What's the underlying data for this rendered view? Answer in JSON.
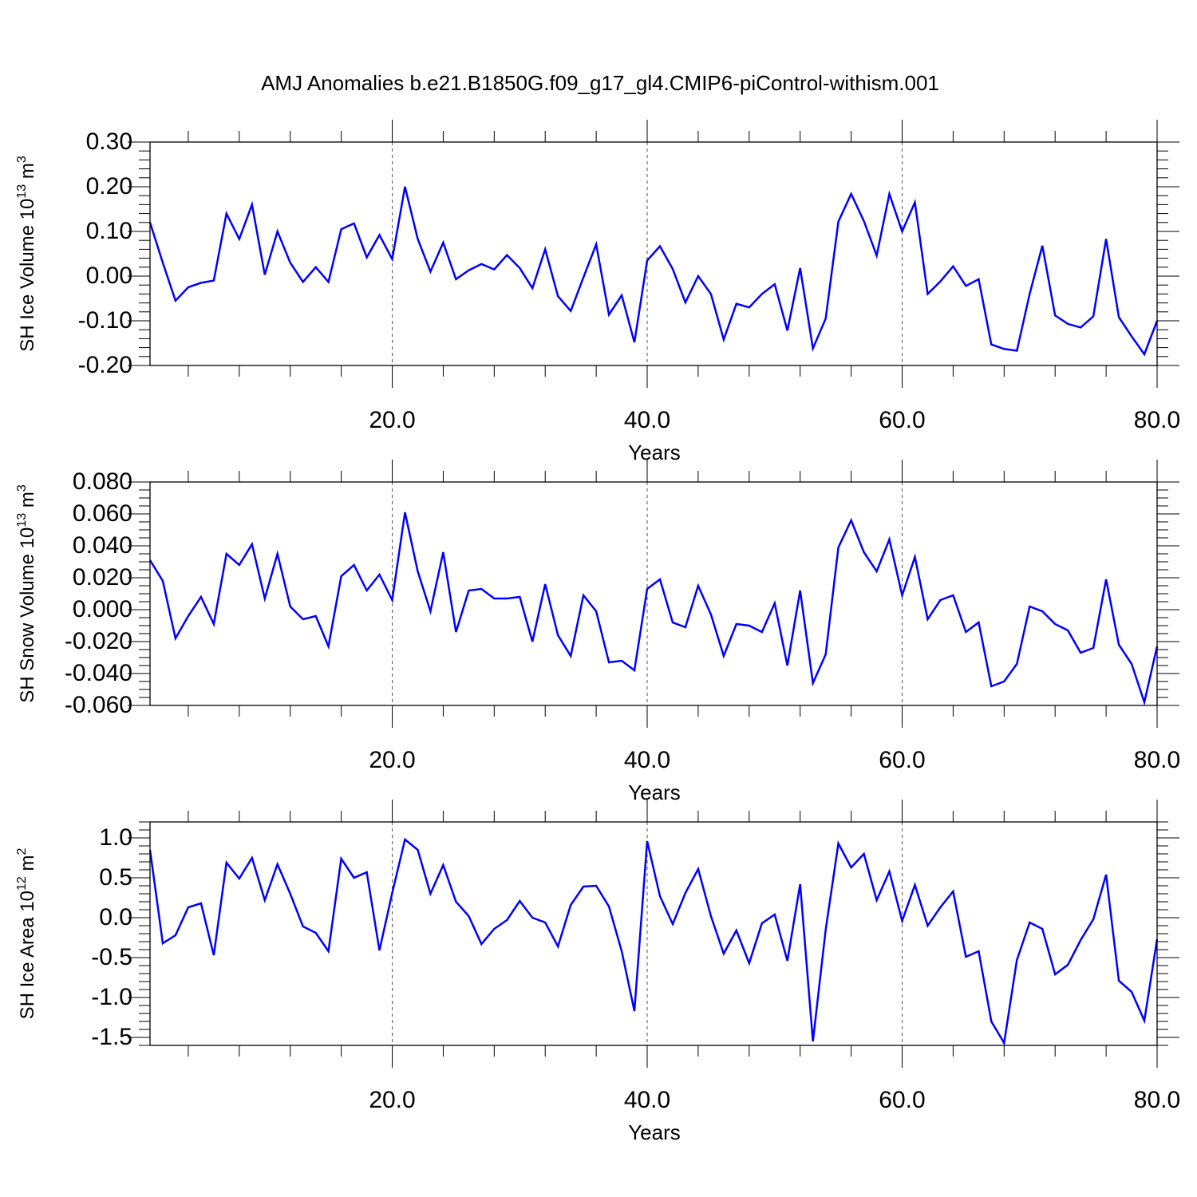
{
  "title": "AMJ Anomalies b.e21.B1850G.f09_g17_gl4.CMIP6-piControl-withism.001",
  "chart_data": [
    {
      "type": "line",
      "ylabel_main": "SH Ice Volume 10",
      "ylabel_sup": "13",
      "ylabel_unit": " m",
      "ylabel_unit_sup": "3",
      "xlabel": "Years",
      "xlim": [
        1,
        80
      ],
      "ylim": [
        -0.2,
        0.3
      ],
      "xticks": [
        20,
        40,
        60,
        80
      ],
      "xtick_labels": [
        "20.0",
        "40.0",
        "60.0",
        "80.0"
      ],
      "yticks": [
        -0.2,
        -0.1,
        0.0,
        0.1,
        0.2,
        0.3
      ],
      "ytick_labels": [
        "-0.20",
        "-0.10",
        "0.00",
        "0.10",
        "0.20",
        "0.30"
      ],
      "minor_y_step": 0.02,
      "dashed_x": [
        20,
        40,
        60
      ],
      "series": [
        {
          "color": "#0000ff",
          "x": [
            1,
            2,
            3,
            4,
            5,
            6,
            7,
            8,
            9,
            10,
            11,
            12,
            13,
            14,
            15,
            16,
            17,
            18,
            19,
            20,
            21,
            22,
            23,
            24,
            25,
            26,
            27,
            28,
            29,
            30,
            31,
            32,
            33,
            34,
            35,
            36,
            37,
            38,
            39,
            40,
            41,
            42,
            43,
            44,
            45,
            46,
            47,
            48,
            49,
            50,
            51,
            52,
            53,
            54,
            55,
            56,
            57,
            58,
            59,
            60,
            61,
            62,
            63,
            64,
            65,
            66,
            67,
            68,
            69,
            70,
            71,
            72,
            73,
            74,
            75,
            76,
            77,
            78,
            79,
            80
          ],
          "values": [
            0.12,
            0.03,
            -0.055,
            -0.025,
            -0.015,
            -0.01,
            0.14,
            0.083,
            0.16,
            0.003,
            0.1,
            0.03,
            -0.013,
            0.02,
            -0.013,
            0.105,
            0.118,
            0.042,
            0.092,
            0.038,
            0.2,
            0.083,
            0.01,
            0.075,
            -0.007,
            0.013,
            0.027,
            0.015,
            0.047,
            0.018,
            -0.027,
            0.06,
            -0.045,
            -0.078,
            -0.003,
            0.071,
            -0.086,
            -0.043,
            -0.148,
            0.035,
            0.067,
            0.016,
            -0.059,
            0.0,
            -0.04,
            -0.142,
            -0.062,
            -0.07,
            -0.04,
            -0.018,
            -0.122,
            0.018,
            -0.162,
            -0.095,
            0.122,
            0.184,
            0.123,
            0.046,
            0.184,
            0.1,
            0.165,
            -0.04,
            -0.012,
            0.022,
            -0.022,
            -0.007,
            -0.153,
            -0.163,
            -0.167,
            -0.04,
            0.068,
            -0.088,
            -0.107,
            -0.115,
            -0.09,
            0.083,
            -0.092,
            -0.135,
            -0.175,
            -0.1
          ]
        }
      ]
    },
    {
      "type": "line",
      "ylabel_main": "SH Snow Volume 10",
      "ylabel_sup": "13",
      "ylabel_unit": " m",
      "ylabel_unit_sup": "3",
      "xlabel": "Years",
      "xlim": [
        1,
        80
      ],
      "ylim": [
        -0.06,
        0.08
      ],
      "xticks": [
        20,
        40,
        60,
        80
      ],
      "xtick_labels": [
        "20.0",
        "40.0",
        "60.0",
        "80.0"
      ],
      "yticks": [
        -0.06,
        -0.04,
        -0.02,
        0.0,
        0.02,
        0.04,
        0.06,
        0.08
      ],
      "ytick_labels": [
        "-0.060",
        "-0.040",
        "-0.020",
        "0.000",
        "0.020",
        "0.040",
        "0.060",
        "0.080"
      ],
      "minor_y_step": 0.005,
      "dashed_x": [
        20,
        40,
        60
      ],
      "series": [
        {
          "color": "#0000ff",
          "x": [
            1,
            2,
            3,
            4,
            5,
            6,
            7,
            8,
            9,
            10,
            11,
            12,
            13,
            14,
            15,
            16,
            17,
            18,
            19,
            20,
            21,
            22,
            23,
            24,
            25,
            26,
            27,
            28,
            29,
            30,
            31,
            32,
            33,
            34,
            35,
            36,
            37,
            38,
            39,
            40,
            41,
            42,
            43,
            44,
            45,
            46,
            47,
            48,
            49,
            50,
            51,
            52,
            53,
            54,
            55,
            56,
            57,
            58,
            59,
            60,
            61,
            62,
            63,
            64,
            65,
            66,
            67,
            68,
            69,
            70,
            71,
            72,
            73,
            74,
            75,
            76,
            77,
            78,
            79,
            80
          ],
          "values": [
            0.031,
            0.018,
            -0.018,
            -0.004,
            0.008,
            -0.009,
            0.035,
            0.028,
            0.041,
            0.007,
            0.035,
            0.002,
            -0.006,
            -0.004,
            -0.023,
            0.021,
            0.028,
            0.012,
            0.022,
            0.006,
            0.061,
            0.024,
            -0.001,
            0.036,
            -0.014,
            0.012,
            0.013,
            0.007,
            0.007,
            0.008,
            -0.02,
            0.016,
            -0.016,
            -0.029,
            0.009,
            -0.001,
            -0.033,
            -0.032,
            -0.038,
            0.013,
            0.019,
            -0.008,
            -0.011,
            0.015,
            -0.003,
            -0.029,
            -0.009,
            -0.01,
            -0.014,
            0.004,
            -0.035,
            0.012,
            -0.046,
            -0.028,
            0.039,
            0.056,
            0.036,
            0.024,
            0.044,
            0.009,
            0.033,
            -0.006,
            0.006,
            0.009,
            -0.014,
            -0.008,
            -0.048,
            -0.045,
            -0.034,
            0.002,
            -0.001,
            -0.009,
            -0.013,
            -0.027,
            -0.024,
            0.019,
            -0.022,
            -0.034,
            -0.058,
            -0.023
          ]
        }
      ]
    },
    {
      "type": "line",
      "ylabel_main": "SH Ice Area 10",
      "ylabel_sup": "12",
      "ylabel_unit": " m",
      "ylabel_unit_sup": "2",
      "xlabel": "Years",
      "xlim": [
        1,
        80
      ],
      "ylim": [
        -1.6,
        1.2
      ],
      "xticks": [
        20,
        40,
        60,
        80
      ],
      "xtick_labels": [
        "20.0",
        "40.0",
        "60.0",
        "80.0"
      ],
      "yticks": [
        -1.5,
        -1.0,
        -0.5,
        0.0,
        0.5,
        1.0
      ],
      "ytick_labels": [
        "-1.5",
        "-1.0",
        "-0.5",
        "0.0",
        "0.5",
        "1.0"
      ],
      "minor_y_step": 0.1,
      "dashed_x": [
        20,
        40,
        60
      ],
      "series": [
        {
          "color": "#0000ff",
          "x": [
            1,
            2,
            3,
            4,
            5,
            6,
            7,
            8,
            9,
            10,
            11,
            12,
            13,
            14,
            15,
            16,
            17,
            18,
            19,
            20,
            21,
            22,
            23,
            24,
            25,
            26,
            27,
            28,
            29,
            30,
            31,
            32,
            33,
            34,
            35,
            36,
            37,
            38,
            39,
            40,
            41,
            42,
            43,
            44,
            45,
            46,
            47,
            48,
            49,
            50,
            51,
            52,
            53,
            54,
            55,
            56,
            57,
            58,
            59,
            60,
            61,
            62,
            63,
            64,
            65,
            66,
            67,
            68,
            69,
            70,
            71,
            72,
            73,
            74,
            75,
            76,
            77,
            78,
            79,
            80
          ],
          "values": [
            0.85,
            -0.32,
            -0.22,
            0.13,
            0.18,
            -0.47,
            0.69,
            0.49,
            0.75,
            0.22,
            0.67,
            0.3,
            -0.11,
            -0.19,
            -0.42,
            0.74,
            0.5,
            0.57,
            -0.41,
            0.31,
            0.98,
            0.85,
            0.3,
            0.66,
            0.2,
            0.02,
            -0.33,
            -0.14,
            -0.03,
            0.21,
            0.0,
            -0.06,
            -0.36,
            0.16,
            0.39,
            0.4,
            0.14,
            -0.42,
            -1.17,
            0.96,
            0.27,
            -0.08,
            0.31,
            0.61,
            0.02,
            -0.45,
            -0.16,
            -0.57,
            -0.07,
            0.04,
            -0.54,
            0.42,
            -1.55,
            -0.15,
            0.93,
            0.63,
            0.8,
            0.22,
            0.58,
            -0.04,
            0.41,
            -0.1,
            0.13,
            0.33,
            -0.49,
            -0.42,
            -1.3,
            -1.57,
            -0.53,
            -0.06,
            -0.14,
            -0.71,
            -0.59,
            -0.28,
            -0.02,
            0.54,
            -0.79,
            -0.93,
            -1.29,
            -0.27
          ]
        }
      ]
    }
  ]
}
